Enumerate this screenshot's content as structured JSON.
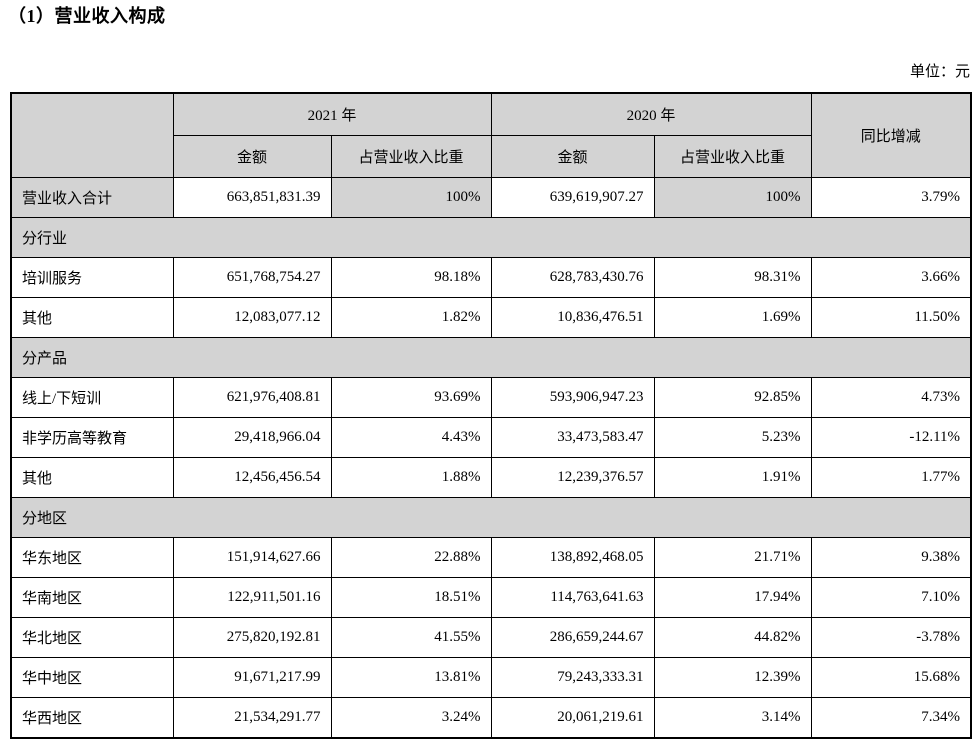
{
  "page": {
    "title": "（1）营业收入构成",
    "unit_label": "单位：元"
  },
  "table": {
    "header": {
      "corner": "",
      "col_2021": "2021 年",
      "col_2020": "2020 年",
      "col_yoy": "同比增减",
      "sub_amount": "金额",
      "sub_proportion": "占营业收入比重"
    },
    "rows": [
      {
        "type": "total",
        "label": "营业收入合计",
        "amount_2021": "663,851,831.39",
        "pct_2021": "100%",
        "amount_2020": "639,619,907.27",
        "pct_2020": "100%",
        "yoy": "3.79%"
      },
      {
        "type": "section",
        "label": "分行业"
      },
      {
        "type": "data",
        "label": "培训服务",
        "amount_2021": "651,768,754.27",
        "pct_2021": "98.18%",
        "amount_2020": "628,783,430.76",
        "pct_2020": "98.31%",
        "yoy": "3.66%"
      },
      {
        "type": "data",
        "label": "其他",
        "amount_2021": "12,083,077.12",
        "pct_2021": "1.82%",
        "amount_2020": "10,836,476.51",
        "pct_2020": "1.69%",
        "yoy": "11.50%"
      },
      {
        "type": "section",
        "label": "分产品"
      },
      {
        "type": "data",
        "label": "线上/下短训",
        "amount_2021": "621,976,408.81",
        "pct_2021": "93.69%",
        "amount_2020": "593,906,947.23",
        "pct_2020": "92.85%",
        "yoy": "4.73%"
      },
      {
        "type": "data",
        "label": "非学历高等教育",
        "amount_2021": "29,418,966.04",
        "pct_2021": "4.43%",
        "amount_2020": "33,473,583.47",
        "pct_2020": "5.23%",
        "yoy": "-12.11%"
      },
      {
        "type": "data",
        "label": "其他",
        "amount_2021": "12,456,456.54",
        "pct_2021": "1.88%",
        "amount_2020": "12,239,376.57",
        "pct_2020": "1.91%",
        "yoy": "1.77%"
      },
      {
        "type": "section",
        "label": "分地区"
      },
      {
        "type": "data",
        "label": "华东地区",
        "amount_2021": "151,914,627.66",
        "pct_2021": "22.88%",
        "amount_2020": "138,892,468.05",
        "pct_2020": "21.71%",
        "yoy": "9.38%"
      },
      {
        "type": "data",
        "label": "华南地区",
        "amount_2021": "122,911,501.16",
        "pct_2021": "18.51%",
        "amount_2020": "114,763,641.63",
        "pct_2020": "17.94%",
        "yoy": "7.10%"
      },
      {
        "type": "data",
        "label": "华北地区",
        "amount_2021": "275,820,192.81",
        "pct_2021": "41.55%",
        "amount_2020": "286,659,244.67",
        "pct_2020": "44.82%",
        "yoy": "-3.78%"
      },
      {
        "type": "data",
        "label": "华中地区",
        "amount_2021": "91,671,217.99",
        "pct_2021": "13.81%",
        "amount_2020": "79,243,333.31",
        "pct_2020": "12.39%",
        "yoy": "15.68%"
      },
      {
        "type": "data",
        "label": "华西地区",
        "amount_2021": "21,534,291.77",
        "pct_2021": "3.24%",
        "amount_2020": "20,061,219.61",
        "pct_2020": "3.14%",
        "yoy": "7.34%"
      }
    ]
  }
}
